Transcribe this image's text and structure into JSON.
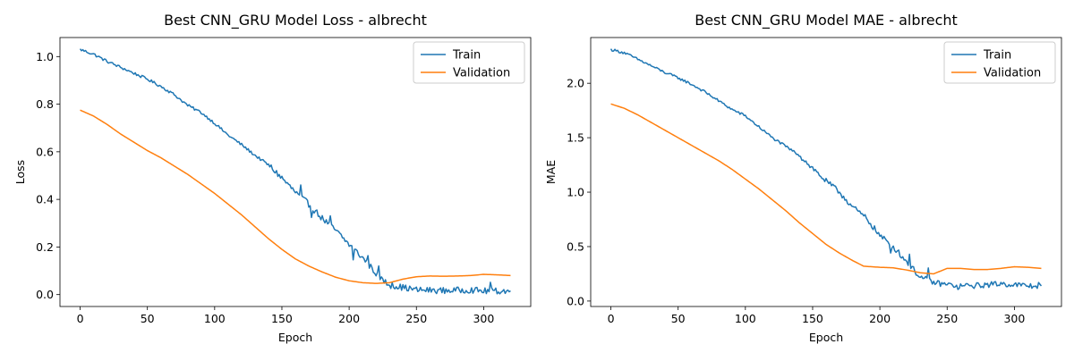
{
  "chart_data": [
    {
      "type": "line",
      "title": "Best CNN_GRU Model Loss - albrecht",
      "xlabel": "Epoch",
      "ylabel": "Loss",
      "xlim": [
        -15,
        335
      ],
      "ylim": [
        -0.05,
        1.08
      ],
      "xticks": [
        0,
        50,
        100,
        150,
        200,
        250,
        300
      ],
      "yticks": [
        0.0,
        0.2,
        0.4,
        0.6,
        0.8,
        1.0
      ],
      "ytick_decimals": 1,
      "grid": false,
      "legend": "top-right",
      "series": [
        {
          "name": "Train",
          "color": "#1f77b4",
          "noise": 0.006,
          "knots": [
            [
              0,
              1.03
            ],
            [
              10,
              1.01
            ],
            [
              20,
              0.98
            ],
            [
              30,
              0.955
            ],
            [
              40,
              0.93
            ],
            [
              50,
              0.905
            ],
            [
              60,
              0.875
            ],
            [
              70,
              0.84
            ],
            [
              80,
              0.795
            ],
            [
              90,
              0.765
            ],
            [
              100,
              0.72
            ],
            [
              110,
              0.67
            ],
            [
              120,
              0.63
            ],
            [
              130,
              0.585
            ],
            [
              140,
              0.545
            ],
            [
              150,
              0.49
            ],
            [
              160,
              0.43
            ],
            [
              170,
              0.38
            ],
            [
              180,
              0.32
            ],
            [
              190,
              0.27
            ],
            [
              200,
              0.21
            ],
            [
              210,
              0.155
            ],
            [
              220,
              0.09
            ],
            [
              225,
              0.06
            ],
            [
              230,
              0.04
            ],
            [
              240,
              0.03
            ],
            [
              250,
              0.02
            ],
            [
              260,
              0.018
            ],
            [
              270,
              0.017
            ],
            [
              280,
              0.018
            ],
            [
              290,
              0.02
            ],
            [
              300,
              0.015
            ],
            [
              310,
              0.015
            ],
            [
              320,
              0.015
            ]
          ],
          "spikes": [
            [
              164,
              0.04
            ],
            [
              172,
              -0.035
            ],
            [
              186,
              0.03
            ],
            [
              203,
              -0.04
            ],
            [
              214,
              0.04
            ],
            [
              222,
              0.03
            ],
            [
              232,
              0.015
            ],
            [
              305,
              0.035
            ]
          ]
        },
        {
          "name": "Validation",
          "color": "#ff7f0e",
          "noise": 0,
          "knots": [
            [
              0,
              0.775
            ],
            [
              10,
              0.75
            ],
            [
              20,
              0.715
            ],
            [
              30,
              0.675
            ],
            [
              40,
              0.64
            ],
            [
              50,
              0.605
            ],
            [
              60,
              0.575
            ],
            [
              70,
              0.54
            ],
            [
              80,
              0.505
            ],
            [
              90,
              0.465
            ],
            [
              100,
              0.425
            ],
            [
              110,
              0.38
            ],
            [
              120,
              0.335
            ],
            [
              130,
              0.285
            ],
            [
              140,
              0.235
            ],
            [
              150,
              0.19
            ],
            [
              160,
              0.15
            ],
            [
              170,
              0.12
            ],
            [
              180,
              0.095
            ],
            [
              190,
              0.073
            ],
            [
              200,
              0.058
            ],
            [
              210,
              0.05
            ],
            [
              220,
              0.047
            ],
            [
              230,
              0.05
            ],
            [
              240,
              0.065
            ],
            [
              250,
              0.075
            ],
            [
              260,
              0.078
            ],
            [
              270,
              0.077
            ],
            [
              280,
              0.078
            ],
            [
              290,
              0.08
            ],
            [
              300,
              0.085
            ],
            [
              310,
              0.083
            ],
            [
              320,
              0.08
            ]
          ],
          "spikes": []
        }
      ]
    },
    {
      "type": "line",
      "title": "Best CNN_GRU Model MAE - albrecht",
      "xlabel": "Epoch",
      "ylabel": "MAE",
      "xlim": [
        -15,
        335
      ],
      "ylim": [
        -0.05,
        2.42
      ],
      "xticks": [
        0,
        50,
        100,
        150,
        200,
        250,
        300
      ],
      "yticks": [
        0.0,
        0.5,
        1.0,
        1.5,
        2.0
      ],
      "ytick_decimals": 1,
      "grid": false,
      "legend": "top-right",
      "series": [
        {
          "name": "Train",
          "color": "#1f77b4",
          "noise": 0.012,
          "knots": [
            [
              0,
              2.31
            ],
            [
              10,
              2.28
            ],
            [
              20,
              2.22
            ],
            [
              30,
              2.16
            ],
            [
              40,
              2.1
            ],
            [
              50,
              2.05
            ],
            [
              60,
              1.99
            ],
            [
              70,
              1.92
            ],
            [
              80,
              1.84
            ],
            [
              90,
              1.76
            ],
            [
              100,
              1.7
            ],
            [
              110,
              1.6
            ],
            [
              120,
              1.5
            ],
            [
              130,
              1.42
            ],
            [
              140,
              1.34
            ],
            [
              150,
              1.22
            ],
            [
              160,
              1.1
            ],
            [
              170,
              1.0
            ],
            [
              180,
              0.86
            ],
            [
              190,
              0.76
            ],
            [
              200,
              0.6
            ],
            [
              210,
              0.5
            ],
            [
              220,
              0.36
            ],
            [
              230,
              0.22
            ],
            [
              240,
              0.17
            ],
            [
              250,
              0.15
            ],
            [
              260,
              0.14
            ],
            [
              270,
              0.14
            ],
            [
              280,
              0.15
            ],
            [
              290,
              0.16
            ],
            [
              300,
              0.15
            ],
            [
              310,
              0.14
            ],
            [
              320,
              0.13
            ]
          ],
          "spikes": [
            [
              222,
              0.1
            ],
            [
              236,
              0.1
            ],
            [
              208,
              -0.08
            ],
            [
              318,
              0.06
            ],
            [
              258,
              -0.06
            ]
          ]
        },
        {
          "name": "Validation",
          "color": "#ff7f0e",
          "noise": 0,
          "knots": [
            [
              0,
              1.81
            ],
            [
              10,
              1.77
            ],
            [
              20,
              1.71
            ],
            [
              30,
              1.64
            ],
            [
              40,
              1.57
            ],
            [
              50,
              1.5
            ],
            [
              60,
              1.43
            ],
            [
              70,
              1.36
            ],
            [
              80,
              1.29
            ],
            [
              90,
              1.21
            ],
            [
              100,
              1.12
            ],
            [
              110,
              1.03
            ],
            [
              120,
              0.93
            ],
            [
              130,
              0.83
            ],
            [
              140,
              0.72
            ],
            [
              150,
              0.62
            ],
            [
              160,
              0.52
            ],
            [
              170,
              0.44
            ],
            [
              180,
              0.37
            ],
            [
              188,
              0.32
            ],
            [
              200,
              0.31
            ],
            [
              210,
              0.305
            ],
            [
              220,
              0.285
            ],
            [
              230,
              0.26
            ],
            [
              240,
              0.25
            ],
            [
              250,
              0.3
            ],
            [
              260,
              0.3
            ],
            [
              270,
              0.29
            ],
            [
              280,
              0.29
            ],
            [
              290,
              0.3
            ],
            [
              300,
              0.315
            ],
            [
              310,
              0.31
            ],
            [
              320,
              0.3
            ]
          ],
          "spikes": []
        }
      ]
    }
  ]
}
